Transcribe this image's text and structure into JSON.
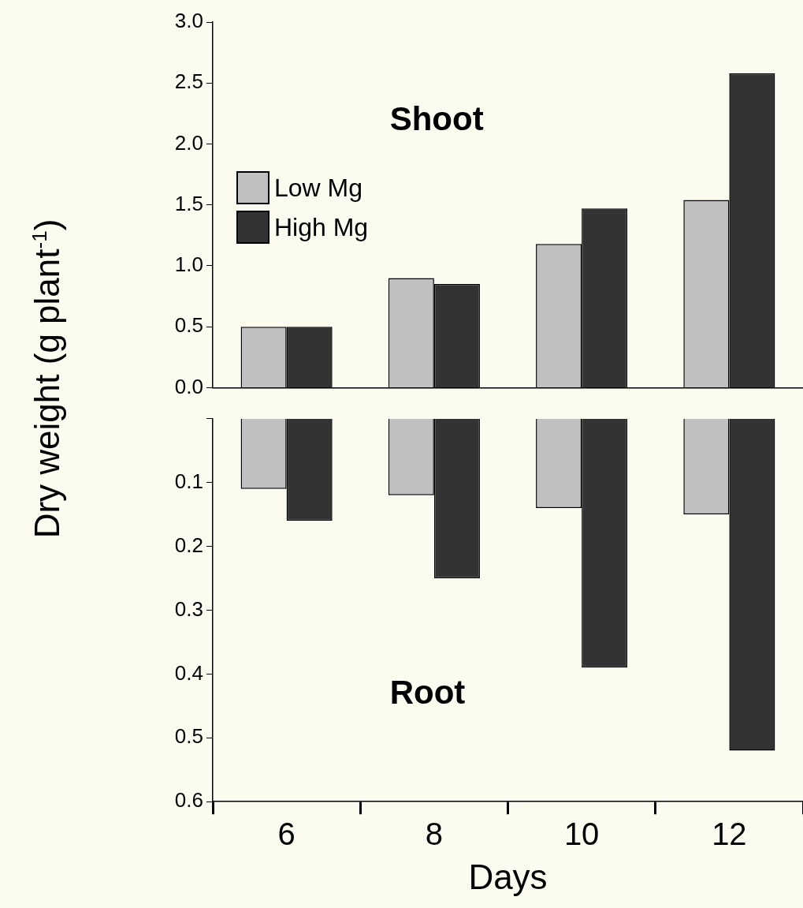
{
  "chart_data": [
    {
      "type": "bar",
      "ylabel": "Dry weight (g plant$^{-1}$)",
      "annotations": [
        "Shoot"
      ],
      "legend": "left",
      "tick_labels": "y",
      "categories": [
        "6",
        "8",
        "10",
        "12"
      ],
      "series": [
        {
          "name": "Low Mg",
          "color": "#c0c0c0",
          "values": [
            0.5,
            0.9,
            1.18,
            1.54
          ]
        },
        {
          "name": "High Mg",
          "color": "#333333",
          "values": [
            0.5,
            0.85,
            1.47,
            2.58
          ]
        }
      ],
      "ylim": [
        0,
        3
      ],
      "yticks": [
        {
          "value": 0,
          "label": "0.0"
        },
        0.5,
        {
          "value": 1,
          "label": "1.0"
        },
        1.5,
        {
          "value": 2,
          "label": "2.0"
        },
        2.5,
        {
          "value": 3,
          "label": "3.0"
        }
      ]
    },
    {
      "type": "bar",
      "xlabel": "Days",
      "annotations": [
        "Root"
      ],
      "categories": [
        "6",
        "8",
        "10",
        "12"
      ],
      "series": [
        {
          "color": "#c0c0c0",
          "values": [
            0.11,
            0.12,
            0.14,
            0.15
          ]
        },
        {
          "color": "#333333",
          "values": [
            0.16,
            0.25,
            0.39,
            0.52
          ]
        }
      ],
      "ylim": [
        0.6,
        0
      ],
      "yticks": [
        {
          "value": 0,
          "label": null
        },
        0.1,
        0.2,
        0.3,
        0.4,
        0.5,
        0.6
      ]
    }
  ]
}
